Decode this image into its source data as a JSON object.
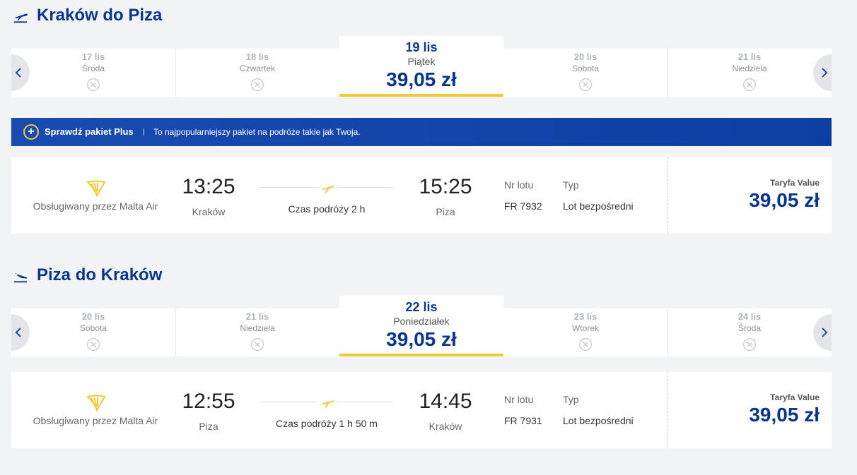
{
  "sections": [
    {
      "title": "Kraków do Piza",
      "dates": [
        {
          "date": "17 lis",
          "day": "Środa"
        },
        {
          "date": "18 lis",
          "day": "Czwartek"
        },
        {
          "date": "19 lis",
          "day": "Piątek",
          "price": "39,05 zł"
        },
        {
          "date": "20 lis",
          "day": "Sobota"
        },
        {
          "date": "21 lis",
          "day": "Niedziela"
        }
      ],
      "flight": {
        "operator": "Obsługiwany przez Malta Air",
        "departure_time": "13:25",
        "departure_city": "Kraków",
        "duration": "Czas podróży 2 h",
        "arrival_time": "15:25",
        "arrival_city": "Piza",
        "flight_no_label": "Nr lotu",
        "flight_no": "FR 7932",
        "type_label": "Typ",
        "type": "Lot bezpośredni",
        "fare_label": "Taryfa Value",
        "price": "39,05 zł"
      }
    },
    {
      "title": "Piza do Kraków",
      "dates": [
        {
          "date": "20 lis",
          "day": "Sobota"
        },
        {
          "date": "21 lis",
          "day": "Niedziela"
        },
        {
          "date": "22 lis",
          "day": "Poniedziałek",
          "price": "39,05 zł"
        },
        {
          "date": "23 lis",
          "day": "Wtorek"
        },
        {
          "date": "24 lis",
          "day": "Środa"
        }
      ],
      "flight": {
        "operator": "Obsługiwany przez Malta Air",
        "departure_time": "12:55",
        "departure_city": "Piza",
        "duration": "Czas podróży 1 h 50 m",
        "arrival_time": "14:45",
        "arrival_city": "Kraków",
        "flight_no_label": "Nr lotu",
        "flight_no": "FR 7931",
        "type_label": "Typ",
        "type": "Lot bezpośredni",
        "fare_label": "Taryfa Value",
        "price": "39,05 zł"
      }
    }
  ],
  "banner": {
    "title": "Sprawdź pakiet Plus",
    "text": "To najpopularniejszy pakiet na podróże takie jak Twoja."
  }
}
